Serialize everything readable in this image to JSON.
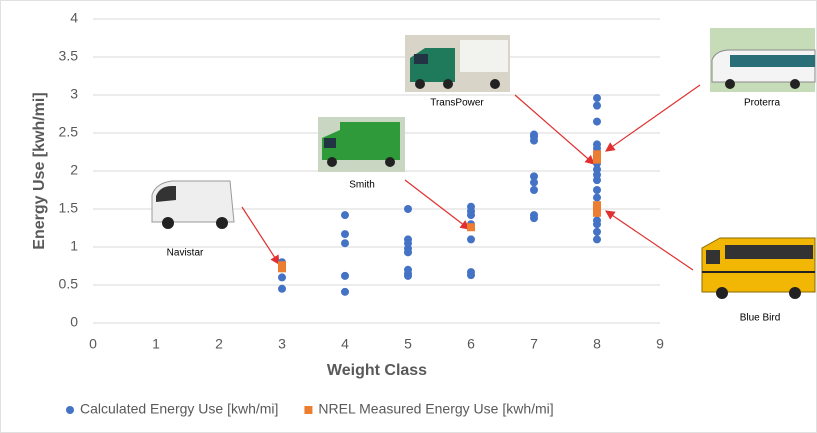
{
  "chart_data": {
    "type": "scatter",
    "x_label": "Weight Class",
    "y_label": "Energy Use [kwh/mi]",
    "xlim": [
      0,
      9
    ],
    "xticks": [
      0,
      1,
      2,
      3,
      4,
      5,
      6,
      7,
      8,
      9
    ],
    "ylim": [
      0,
      4
    ],
    "yticks": [
      0,
      0.5,
      1,
      1.5,
      2,
      2.5,
      3,
      3.5,
      4
    ],
    "grid": true,
    "legend": "bottom",
    "series": [
      {
        "name": "Calculated Energy Use [kwh/mi]",
        "color": "#4472c4",
        "marker": "circle",
        "x": [
          3,
          3,
          3,
          3,
          4,
          4,
          4,
          4,
          4,
          5,
          5,
          5,
          5,
          5,
          5,
          5,
          5,
          6,
          6,
          6,
          6,
          6,
          6,
          6,
          7,
          7,
          7,
          7,
          7,
          7,
          7,
          7,
          8,
          8,
          8,
          8,
          8,
          8,
          8,
          8,
          8,
          8,
          8,
          8,
          8,
          8,
          8,
          8,
          8,
          8
        ],
        "values": [
          0.8,
          0.72,
          0.6,
          0.45,
          1.42,
          1.17,
          1.05,
          0.62,
          0.41,
          1.5,
          1.1,
          1.05,
          0.98,
          0.93,
          0.7,
          0.65,
          0.62,
          1.53,
          1.47,
          1.42,
          1.3,
          1.1,
          0.67,
          0.63,
          2.48,
          2.45,
          2.4,
          1.93,
          1.85,
          1.75,
          1.42,
          1.38,
          2.96,
          2.86,
          2.65,
          2.35,
          2.3,
          2.22,
          2.1,
          2.02,
          1.95,
          1.88,
          1.75,
          1.65,
          1.55,
          1.48,
          1.35,
          1.3,
          1.2,
          1.1
        ]
      },
      {
        "name": "NREL Measured Energy Use [kwh/mi]",
        "color": "#ed7d31",
        "marker": "square",
        "x": [
          3,
          3,
          6,
          8,
          8,
          8,
          8
        ],
        "values": [
          0.76,
          0.72,
          1.26,
          2.22,
          2.15,
          1.55,
          1.45
        ]
      }
    ],
    "annotations": [
      {
        "text": "Navistar"
      },
      {
        "text": "Smith"
      },
      {
        "text": "TransPower"
      },
      {
        "text": "Proterra"
      },
      {
        "text": "Blue Bird"
      }
    ]
  }
}
